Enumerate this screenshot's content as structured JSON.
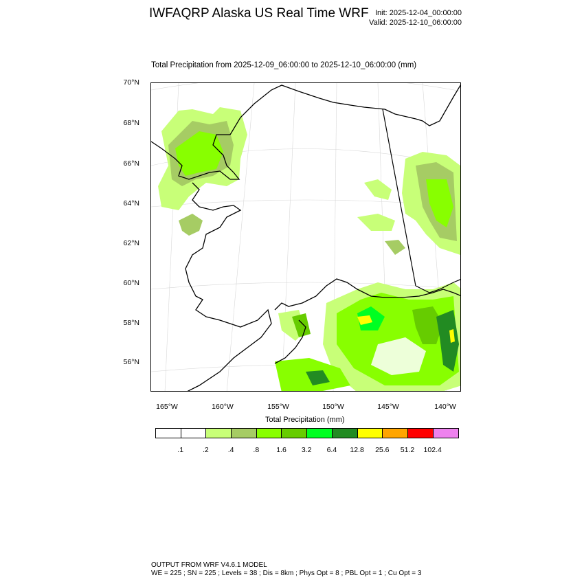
{
  "header": {
    "title": "IWFAQRP Alaska US Real Time WRF",
    "init": "Init: 2025-12-04_00:00:00",
    "valid": "Valid: 2025-12-10_06:00:00"
  },
  "map": {
    "subtitle": "Total Precipitation from 2025-12-09_06:00:00 to 2025-12-10_06:00:00   (mm)",
    "lat_labels": [
      "70°N",
      "68°N",
      "66°N",
      "64°N",
      "62°N",
      "60°N",
      "58°N",
      "56°N"
    ],
    "lon_labels": [
      "165°W",
      "160°W",
      "155°W",
      "150°W",
      "145°W",
      "140°W"
    ]
  },
  "legend": {
    "title": "Total Precipitation  (mm)",
    "colors": [
      "#ffffff",
      "#ffffff",
      "#c8ff78",
      "#a6cc64",
      "#88ff00",
      "#66cc00",
      "#00ff22",
      "#228b22",
      "#ffff00",
      "#ffa500",
      "#ff0000",
      "#ee82ee"
    ],
    "ticks": [
      ".1",
      ".2",
      ".4",
      ".8",
      "1.6",
      "3.2",
      "6.4",
      "12.8",
      "25.6",
      "51.2",
      "102.4"
    ]
  },
  "footer": {
    "line1": "OUTPUT FROM WRF V4.6.1 MODEL",
    "line2": "WE = 225 ; SN = 225 ; Levels = 38 ; Dis = 8km ; Phys Opt = 8 ; PBL Opt = 1 ; Cu Opt = 3"
  }
}
